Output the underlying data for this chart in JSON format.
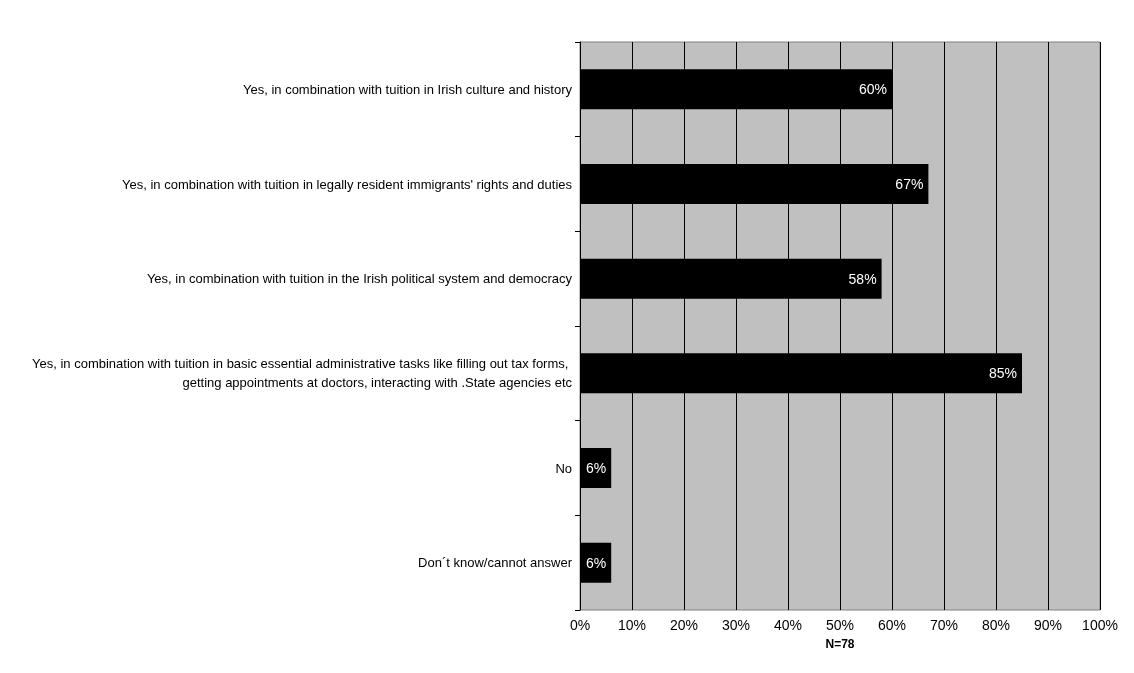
{
  "chart_data": {
    "type": "bar",
    "orientation": "horizontal",
    "categories": [
      "Yes, in combination with tuition in Irish culture and history",
      "Yes, in combination with tuition in legally resident immigrants' rights and duties",
      "Yes, in combination with tuition in the Irish political system and democracy",
      "Yes, in combination with tuition in basic essential administrative tasks like filling out tax forms, getting appointments at doctors, interacting with .State agencies etc",
      "No",
      "Don´t know/cannot answer"
    ],
    "values": [
      60,
      67,
      58,
      85,
      6,
      6
    ],
    "value_labels": [
      "60%",
      "67%",
      "58%",
      "85%",
      "6%",
      "6%"
    ],
    "color": "#000000",
    "xlabel": "N=78",
    "xlim": [
      0,
      100
    ],
    "xticks": [
      {
        "value": 0,
        "label": "0%"
      },
      {
        "value": 10,
        "label": "10%"
      },
      {
        "value": 20,
        "label": "20%"
      },
      {
        "value": 30,
        "label": "30%"
      },
      {
        "value": 40,
        "label": "40%"
      },
      {
        "value": 50,
        "label": "50%"
      },
      {
        "value": 60,
        "label": "60%"
      },
      {
        "value": 70,
        "label": "70%"
      },
      {
        "value": 80,
        "label": "80%"
      },
      {
        "value": 90,
        "label": "90%"
      },
      {
        "value": 100,
        "label": "100%"
      }
    ],
    "grid": "x"
  }
}
